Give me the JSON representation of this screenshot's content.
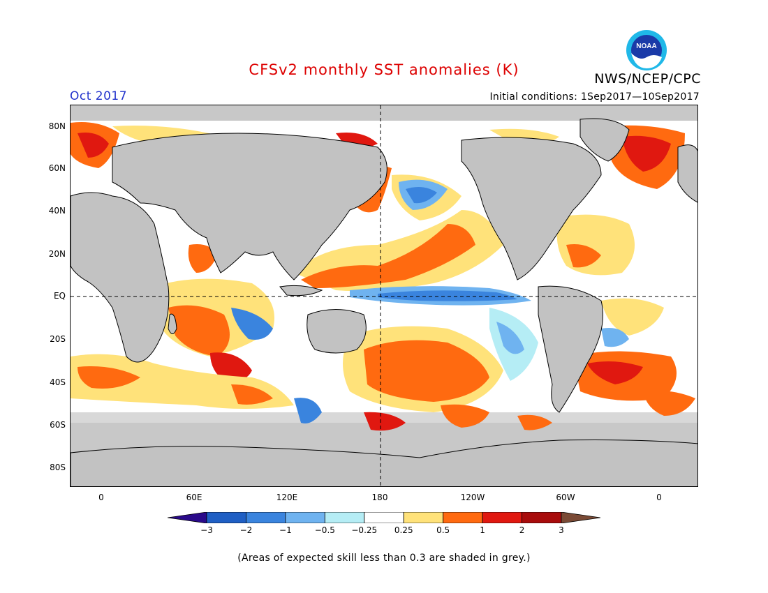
{
  "title": "CFSv2 monthly SST anomalies (K)",
  "organization": "NWS/NCEP/CPC",
  "month_label": "Oct 2017",
  "initial_conditions": "Initial conditions: 1Sep2017—10Sep2017",
  "logo_text": "NOAA",
  "lat_labels": [
    "80N",
    "60N",
    "40N",
    "20N",
    "EQ",
    "20S",
    "40S",
    "60S",
    "80S"
  ],
  "lon_labels": [
    "0",
    "60E",
    "120E",
    "180",
    "120W",
    "60W",
    "0"
  ],
  "colorbar": {
    "labels": [
      "−3",
      "−2",
      "−1",
      "−0.5",
      "−0.25",
      "0.25",
      "0.5",
      "1",
      "2",
      "3"
    ],
    "colors": [
      "#2a0a8a",
      "#1f5fc4",
      "#3a84de",
      "#6fb3f0",
      "#b5edf5",
      "#ffffff",
      "#ffe27a",
      "#ff6a10",
      "#e01810",
      "#a80c0c",
      "#7a4a35"
    ]
  },
  "map_colors": {
    "land": "#c2c2c2",
    "grey_skill": "#c8c8c8",
    "coast": "#000000"
  },
  "footnote": "(Areas of expected skill less than 0.3 are shaded in grey.)"
}
